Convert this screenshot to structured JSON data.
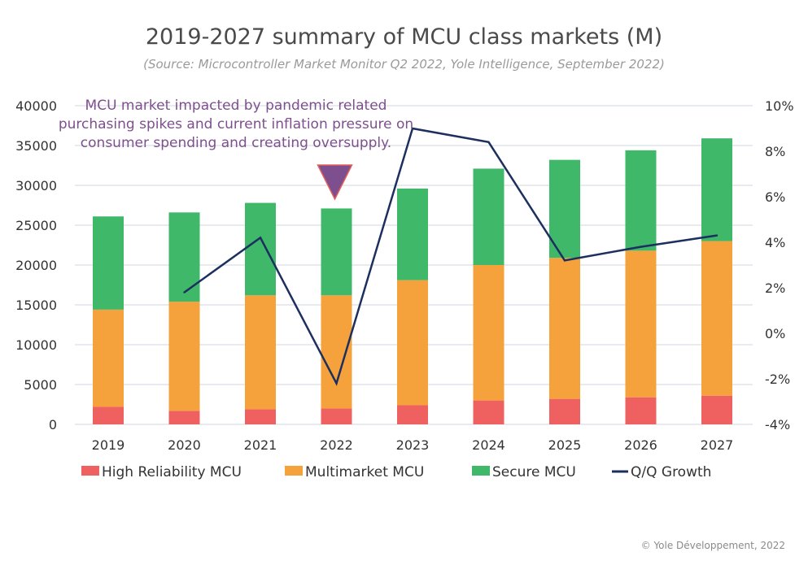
{
  "chart_data": {
    "type": "bar",
    "stacked": true,
    "title": "2019-2027 summary of MCU class markets (M)",
    "subtitle": "(Source: Microcontroller Market Monitor Q2 2022, Yole Intelligence, September 2022)",
    "categories": [
      "2019",
      "2020",
      "2021",
      "2022",
      "2023",
      "2024",
      "2025",
      "2026",
      "2027"
    ],
    "series": [
      {
        "name": "High Reliability MCU",
        "color": "#ef6160",
        "values": [
          2200,
          1700,
          1900,
          2000,
          2400,
          3000,
          3200,
          3400,
          3600
        ]
      },
      {
        "name": "Multimarket MCU",
        "color": "#f6a23c",
        "values": [
          12200,
          13700,
          14300,
          14200,
          15700,
          17000,
          17700,
          18400,
          19400
        ]
      },
      {
        "name": "Secure MCU",
        "color": "#3fb86a",
        "values": [
          11700,
          11200,
          11600,
          10900,
          11500,
          12100,
          12300,
          12600,
          12900
        ]
      }
    ],
    "line_series": {
      "name": "Q/Q Growth",
      "color": "#1c2f5e",
      "axis": "right",
      "unit": "%",
      "values": [
        null,
        1.8,
        4.2,
        -2.2,
        9.0,
        8.4,
        3.2,
        3.8,
        4.3
      ]
    },
    "ylim": [
      0,
      40000
    ],
    "yticks": [
      "0",
      "5000",
      "10000",
      "15000",
      "20000",
      "25000",
      "30000",
      "35000",
      "40000"
    ],
    "y2lim": [
      -4,
      10
    ],
    "y2ticks": [
      "-4%",
      "-2%",
      "0%",
      "2%",
      "4%",
      "6%",
      "8%",
      "10%"
    ],
    "grid": true,
    "legend": "bottom",
    "annotation": {
      "text": "MCU market impacted by pandemic related purchasing spikes and current inflation pressure on consumer spending and creating oversupply.",
      "target_category": "2022",
      "marker_color": "#7e4f8e"
    }
  },
  "copyright": "© Yole Développement, 2022"
}
